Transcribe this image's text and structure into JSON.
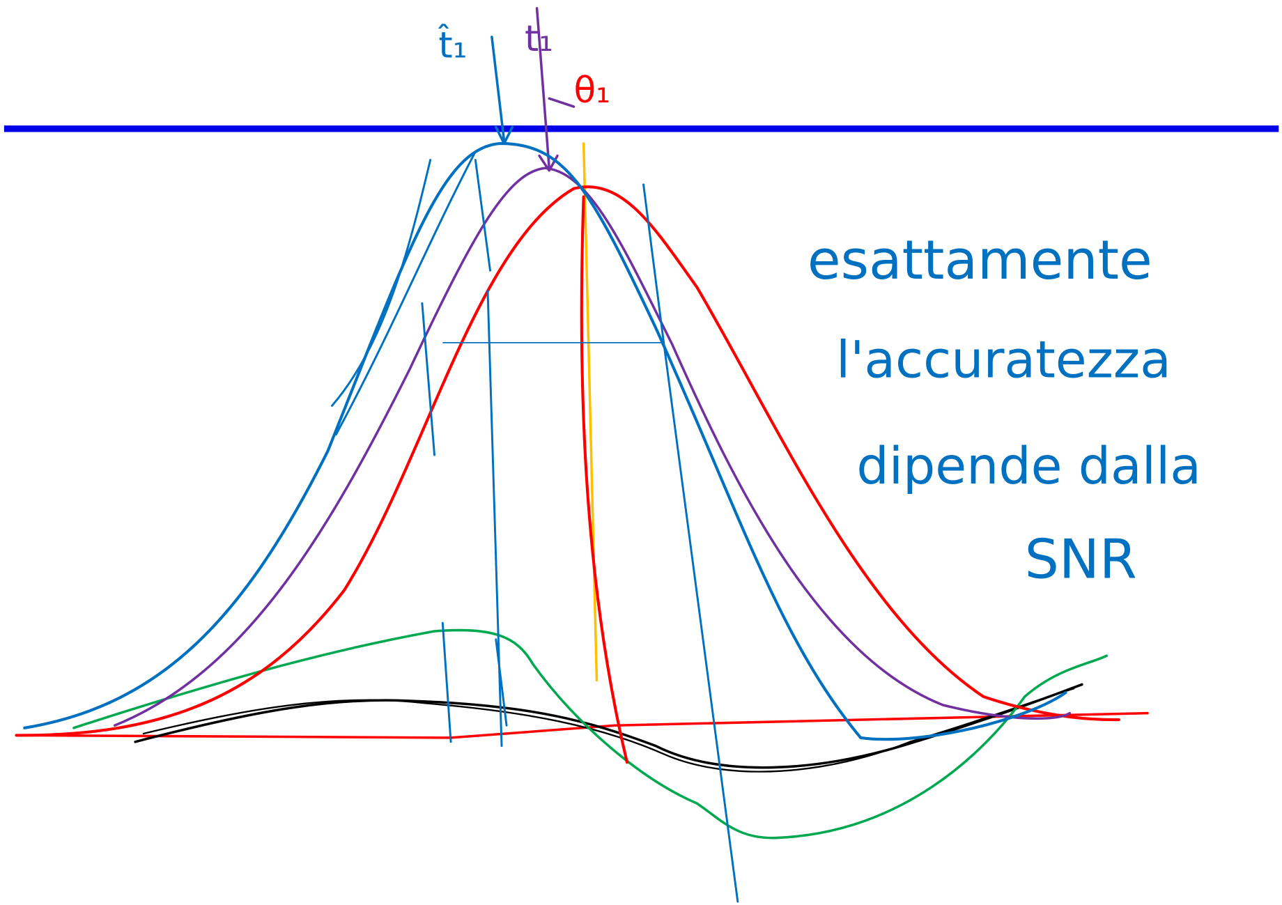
{
  "labels": {
    "t_hat": "t̂₁",
    "t": "t₁",
    "theta": "θ₁"
  },
  "note": {
    "lines": [
      "esattamente",
      "l'accuratezza",
      "dipende dalla",
      "SNR"
    ]
  }
}
